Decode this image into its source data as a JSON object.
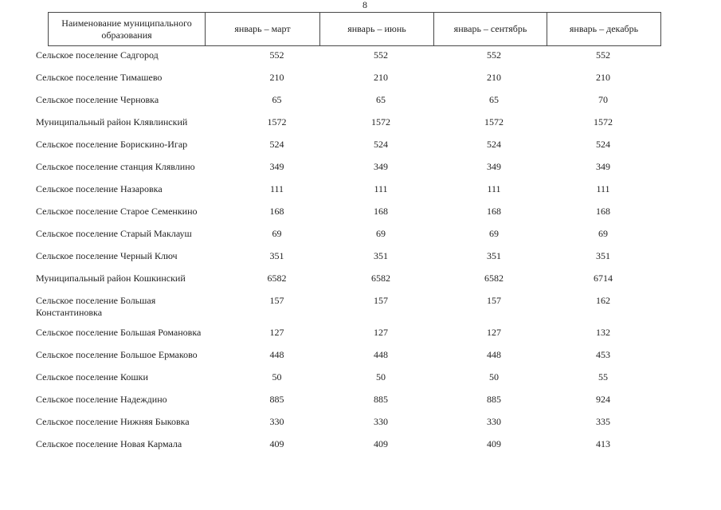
{
  "page_number": "8",
  "table": {
    "columns": [
      "Наименование муниципального образования",
      "январь – март",
      "январь – июнь",
      "январь – сентябрь",
      "январь – декабрь"
    ],
    "rows": [
      {
        "name": "Сельское поселение Садгород",
        "values": [
          "552",
          "552",
          "552",
          "552"
        ]
      },
      {
        "name": "Сельское поселение Тимашево",
        "values": [
          "210",
          "210",
          "210",
          "210"
        ]
      },
      {
        "name": "Сельское поселение Черновка",
        "values": [
          "65",
          "65",
          "65",
          "70"
        ]
      },
      {
        "name": "Муниципальный район Клявлинский",
        "values": [
          "1572",
          "1572",
          "1572",
          "1572"
        ]
      },
      {
        "name": "Сельское поселение Борискино-Игар",
        "values": [
          "524",
          "524",
          "524",
          "524"
        ]
      },
      {
        "name": "Сельское поселение станция Клявлино",
        "values": [
          "349",
          "349",
          "349",
          "349"
        ]
      },
      {
        "name": "Сельское поселение Назаровка",
        "values": [
          "111",
          "111",
          "111",
          "111"
        ]
      },
      {
        "name": "Сельское поселение Старое Семенкино",
        "values": [
          "168",
          "168",
          "168",
          "168"
        ]
      },
      {
        "name": "Сельское поселение Старый Маклауш",
        "values": [
          "69",
          "69",
          "69",
          "69"
        ]
      },
      {
        "name": "Сельское поселение Черный Ключ",
        "values": [
          "351",
          "351",
          "351",
          "351"
        ]
      },
      {
        "name": "Муниципальный район Кошкинский",
        "values": [
          "6582",
          "6582",
          "6582",
          "6714"
        ]
      },
      {
        "name": "Сельское поселение Большая\nКонстантиновка",
        "two_line": true,
        "values": [
          "157",
          "157",
          "157",
          "162"
        ]
      },
      {
        "name": "Сельское поселение Большая Романовка",
        "values": [
          "127",
          "127",
          "127",
          "132"
        ]
      },
      {
        "name": "Сельское поселение Большое Ермаково",
        "values": [
          "448",
          "448",
          "448",
          "453"
        ]
      },
      {
        "name": "Сельское поселение Кошки",
        "values": [
          "50",
          "50",
          "50",
          "55"
        ]
      },
      {
        "name": "Сельское поселение Надеждино",
        "values": [
          "885",
          "885",
          "885",
          "924"
        ]
      },
      {
        "name": "Сельское поселение Нижняя Быковка",
        "values": [
          "330",
          "330",
          "330",
          "335"
        ]
      },
      {
        "name": "Сельское поселение Новая Кармала",
        "values": [
          "409",
          "409",
          "409",
          "413"
        ]
      }
    ]
  }
}
